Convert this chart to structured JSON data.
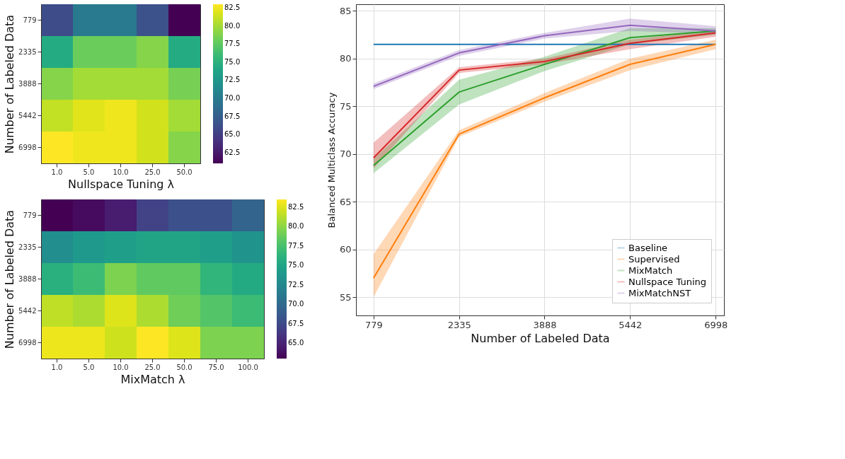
{
  "chart_data": [
    {
      "type": "heatmap",
      "xlabel": "Nullspace Tuning λ",
      "ylabel": "Number of Labeled Data",
      "categories": [
        "1.0",
        "5.0",
        "10.0",
        "25.0",
        "50.0"
      ],
      "y_categories": [
        "779",
        "2335",
        "3888",
        "5442",
        "6998"
      ],
      "cells": [
        [
          66,
          70,
          70,
          66.5,
          61
        ],
        [
          74.5,
          78,
          78,
          79,
          74.5
        ],
        [
          79,
          80,
          80,
          80,
          78.5
        ],
        [
          81,
          82,
          82.5,
          81.5,
          80
        ],
        [
          83,
          82.5,
          82.5,
          81.5,
          79
        ]
      ],
      "clim": [
        61,
        83
      ],
      "cticks": [
        62.5,
        {
          "value": 65,
          "label": "65.0"
        },
        67.5,
        {
          "value": 70,
          "label": "70.0"
        },
        72.5,
        {
          "value": 75,
          "label": "75.0"
        },
        77.5,
        {
          "value": 80,
          "label": "80.0"
        },
        82.5
      ]
    },
    {
      "type": "heatmap",
      "xlabel": "MixMatch λ",
      "ylabel": "Number of Labeled Data",
      "categories": [
        "1.0",
        "5.0",
        "10.0",
        "25.0",
        "50.0",
        "75.0",
        "100.0"
      ],
      "y_categories": [
        "779",
        "2335",
        "3888",
        "5442",
        "6998"
      ],
      "cells": [
        [
          63,
          63.5,
          64.5,
          67,
          68,
          68,
          69.5
        ],
        [
          73,
          74,
          74.5,
          75,
          75,
          74.5,
          73.5
        ],
        [
          76,
          77,
          79.5,
          78.5,
          78.5,
          76.5,
          75.5
        ],
        [
          81.5,
          81,
          82.5,
          81,
          79,
          78,
          77
        ],
        [
          83,
          83,
          82,
          83.5,
          82.5,
          79.5,
          79.5
        ]
      ],
      "clim": [
        63,
        83.5
      ],
      "cticks": [
        {
          "value": 65,
          "label": "65.0"
        },
        67.5,
        {
          "value": 70,
          "label": "70.0"
        },
        72.5,
        {
          "value": 75,
          "label": "75.0"
        },
        77.5,
        {
          "value": 80,
          "label": "80.0"
        },
        82.5
      ]
    },
    {
      "type": "line",
      "xlabel": "Number of Labeled Data",
      "ylabel": "Balanced Multiclass Accuracy",
      "x": [
        779,
        2335,
        3888,
        5442,
        6998
      ],
      "series": [
        {
          "name": "Baseline",
          "color": "#1f77b4",
          "values": [
            81.5,
            81.5,
            81.5,
            81.5,
            81.5
          ]
        },
        {
          "name": "Supervised",
          "color": "#ff7f0e",
          "values": [
            57,
            72.1,
            75.9,
            79.4,
            81.5
          ],
          "lower": [
            55,
            71.8,
            75.5,
            78.8,
            81
          ],
          "upper": [
            59.5,
            72.5,
            76.4,
            80,
            82
          ]
        },
        {
          "name": "MixMatch",
          "color": "#2ca02c",
          "values": [
            68.8,
            76.5,
            79.4,
            82.2,
            82.9
          ],
          "lower": [
            68,
            75.2,
            78.7,
            81.5,
            82.5
          ],
          "upper": [
            69.5,
            77.8,
            80.2,
            83.2,
            83.2
          ]
        },
        {
          "name": "Nullspace Tuning",
          "color": "#d62728",
          "values": [
            69.6,
            78.8,
            79.7,
            81.6,
            82.7
          ],
          "lower": [
            68.5,
            78.5,
            79.4,
            81,
            82.3
          ],
          "upper": [
            71.2,
            79.1,
            80,
            82,
            83
          ]
        },
        {
          "name": "MixMatchNST",
          "color": "#9467bd",
          "values": [
            77.1,
            80.6,
            82.4,
            83.5,
            82.9
          ],
          "lower": [
            76.8,
            80.3,
            82.1,
            82.9,
            82.6
          ],
          "upper": [
            77.4,
            80.9,
            82.7,
            84.2,
            83.4
          ]
        }
      ],
      "xlim": [
        460,
        7150
      ],
      "ylim": [
        53.1,
        85.7
      ],
      "xticks": [
        779,
        2335,
        3888,
        5442,
        6998
      ],
      "yticks": [
        55,
        60,
        65,
        70,
        75,
        80,
        85
      ],
      "grid": true,
      "legend": "bottom right"
    }
  ]
}
